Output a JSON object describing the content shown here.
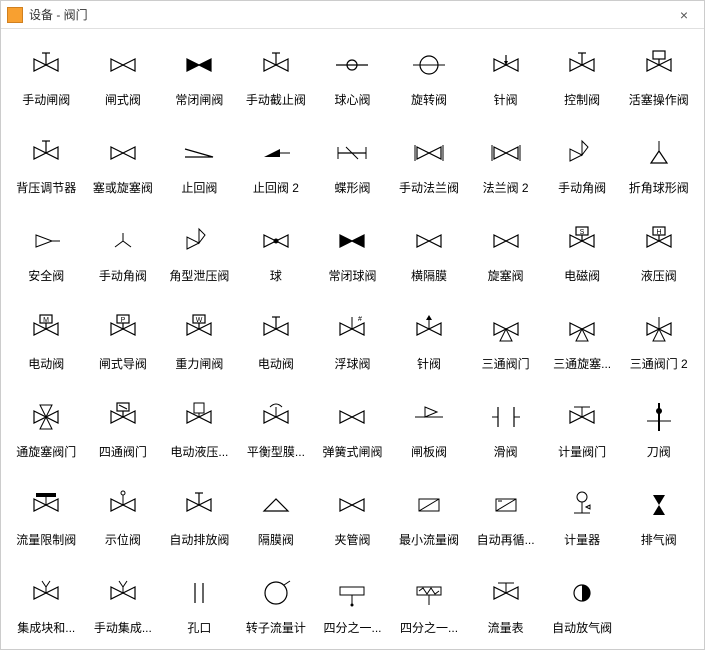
{
  "window": {
    "title": "设备 - 阀门",
    "close_glyph": "×"
  },
  "style": {
    "stroke": "#000000",
    "fill_solid": "#000000",
    "background": "#ffffff",
    "grid_cols": 9,
    "stroke_width": 1.2
  },
  "items": [
    {
      "label": "手动闸阀",
      "glyph": "bowtie-stem"
    },
    {
      "label": "闸式阀",
      "glyph": "bowtie"
    },
    {
      "label": "常闭闸阀",
      "glyph": "bowtie-filled"
    },
    {
      "label": "手动截止阀",
      "glyph": "bowtie-stem"
    },
    {
      "label": "球心阀",
      "glyph": "circle-line"
    },
    {
      "label": "旋转阀",
      "glyph": "circle-big"
    },
    {
      "label": "针阀",
      "glyph": "bowtie-needle"
    },
    {
      "label": "控制阀",
      "glyph": "bowtie-stem"
    },
    {
      "label": "活塞操作阀",
      "glyph": "bowtie-box-top"
    },
    {
      "label": "背压调节器",
      "glyph": "bowtie-stem"
    },
    {
      "label": "塞或旋塞阀",
      "glyph": "bowtie"
    },
    {
      "label": "止回阀",
      "glyph": "check-z"
    },
    {
      "label": "止回阀 2",
      "glyph": "check-tri"
    },
    {
      "label": "蝶形阀",
      "glyph": "bowtie-mid"
    },
    {
      "label": "手动法兰阀",
      "glyph": "bowtie-flange"
    },
    {
      "label": "法兰阀 2",
      "glyph": "bowtie-flange"
    },
    {
      "label": "手动角阀",
      "glyph": "angle-valve"
    },
    {
      "label": "折角球形阀",
      "glyph": "angle-tri"
    },
    {
      "label": "安全阀",
      "glyph": "tri-right"
    },
    {
      "label": "手动角阀",
      "glyph": "angle-small"
    },
    {
      "label": "角型泄压阀",
      "glyph": "angle-valve"
    },
    {
      "label": "球",
      "glyph": "bowtie-dot"
    },
    {
      "label": "常闭球阀",
      "glyph": "bowtie-filled"
    },
    {
      "label": "横隔膜",
      "glyph": "bowtie"
    },
    {
      "label": "旋塞阀",
      "glyph": "bowtie"
    },
    {
      "label": "电磁阀",
      "glyph": "bowtie-box-s"
    },
    {
      "label": "液压阀",
      "glyph": "bowtie-box-h"
    },
    {
      "label": "电动阀",
      "glyph": "bowtie-box-m"
    },
    {
      "label": "闸式导阀",
      "glyph": "bowtie-box-p"
    },
    {
      "label": "重力闸阀",
      "glyph": "bowtie-box-w"
    },
    {
      "label": "电动阀",
      "glyph": "bowtie-stem"
    },
    {
      "label": "浮球阀",
      "glyph": "bowtie-hash"
    },
    {
      "label": "针阀",
      "glyph": "bowtie-arrow"
    },
    {
      "label": "三通阀门",
      "glyph": "three-way"
    },
    {
      "label": "三通旋塞...",
      "glyph": "three-way"
    },
    {
      "label": "三通阀门 2",
      "glyph": "three-way-x"
    },
    {
      "label": "通旋塞阀门",
      "glyph": "four-way"
    },
    {
      "label": "四通阀门",
      "glyph": "bowtie-box-d"
    },
    {
      "label": "电动液压...",
      "glyph": "bowtie-jar"
    },
    {
      "label": "平衡型膜...",
      "glyph": "bowtie-cap"
    },
    {
      "label": "弹簧式闸阀",
      "glyph": "bowtie"
    },
    {
      "label": "闸板阀",
      "glyph": "flag-right"
    },
    {
      "label": "滑阀",
      "glyph": "slide"
    },
    {
      "label": "计量阀门",
      "glyph": "bowtie-flat"
    },
    {
      "label": "刀阀",
      "glyph": "knife"
    },
    {
      "label": "流量限制阀",
      "glyph": "bowtie-bar"
    },
    {
      "label": "示位阀",
      "glyph": "bowtie-dotup"
    },
    {
      "label": "自动排放阀",
      "glyph": "bowtie-stem"
    },
    {
      "label": "隔膜阀",
      "glyph": "diaphragm"
    },
    {
      "label": "夹管阀",
      "glyph": "bowtie"
    },
    {
      "label": "最小流量阀",
      "glyph": "box-diag"
    },
    {
      "label": "自动再循...",
      "glyph": "box-diag2"
    },
    {
      "label": "计量器",
      "glyph": "meter"
    },
    {
      "label": "排气阀",
      "glyph": "hourglass-filled"
    },
    {
      "label": "集成块和...",
      "glyph": "bowtie-v"
    },
    {
      "label": "手动集成...",
      "glyph": "bowtie-v"
    },
    {
      "label": "孔口",
      "glyph": "orifice"
    },
    {
      "label": "转子流量计",
      "glyph": "circle-plain"
    },
    {
      "label": "四分之一...",
      "glyph": "rect-t"
    },
    {
      "label": "四分之一...",
      "glyph": "rect-zz"
    },
    {
      "label": "流量表",
      "glyph": "bowtie-flat"
    },
    {
      "label": "自动放气阀",
      "glyph": "half-circle"
    }
  ]
}
